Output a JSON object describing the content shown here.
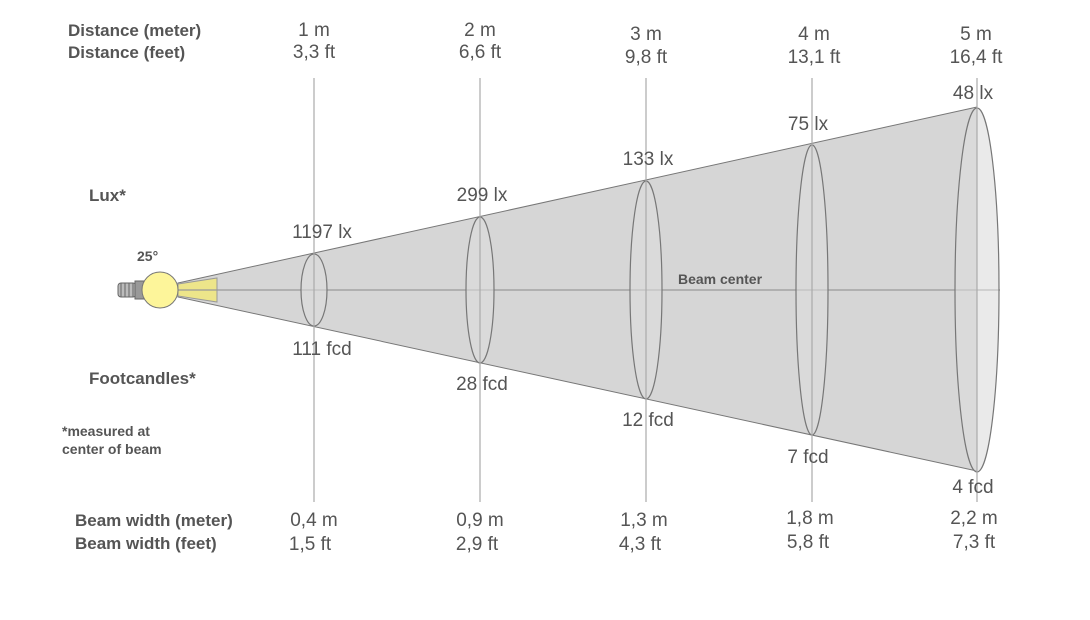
{
  "labels": {
    "distance_meter": "Distance (meter)",
    "distance_feet": "Distance (feet)",
    "lux": "Lux*",
    "footcandles": "Footcandles*",
    "note_line1": "*measured at",
    "note_line2": "center of beam",
    "beam_width_meter": "Beam width (meter)",
    "beam_width_feet": "Beam width (feet)",
    "beam_angle": "25°",
    "beam_center": "Beam center"
  },
  "columns": [
    {
      "dist_m": "1 m",
      "dist_ft": "3,3 ft",
      "lux": "1197 lx",
      "fcd": "111 fcd",
      "width_m": "0,4 m",
      "width_ft": "1,5 ft"
    },
    {
      "dist_m": "2 m",
      "dist_ft": "6,6 ft",
      "lux": "299 lx",
      "fcd": "28 fcd",
      "width_m": "0,9 m",
      "width_ft": "2,9 ft"
    },
    {
      "dist_m": "3 m",
      "dist_ft": "9,8 ft",
      "lux": "133 lx",
      "fcd": "12 fcd",
      "width_m": "1,3 m",
      "width_ft": "4,3 ft"
    },
    {
      "dist_m": "4 m",
      "dist_ft": "13,1 ft",
      "lux": "75 lx",
      "fcd": "7 fcd",
      "width_m": "1,8 m",
      "width_ft": "5,8 ft"
    },
    {
      "dist_m": "5 m",
      "dist_ft": "16,4 ft",
      "lux": "48 lx",
      "fcd": "4 fcd",
      "width_m": "2,2 m",
      "width_ft": "7,3 ft"
    }
  ],
  "colors": {
    "cone": "#d6d6d6",
    "bulb": "#fdf59a",
    "text": "#555555"
  }
}
